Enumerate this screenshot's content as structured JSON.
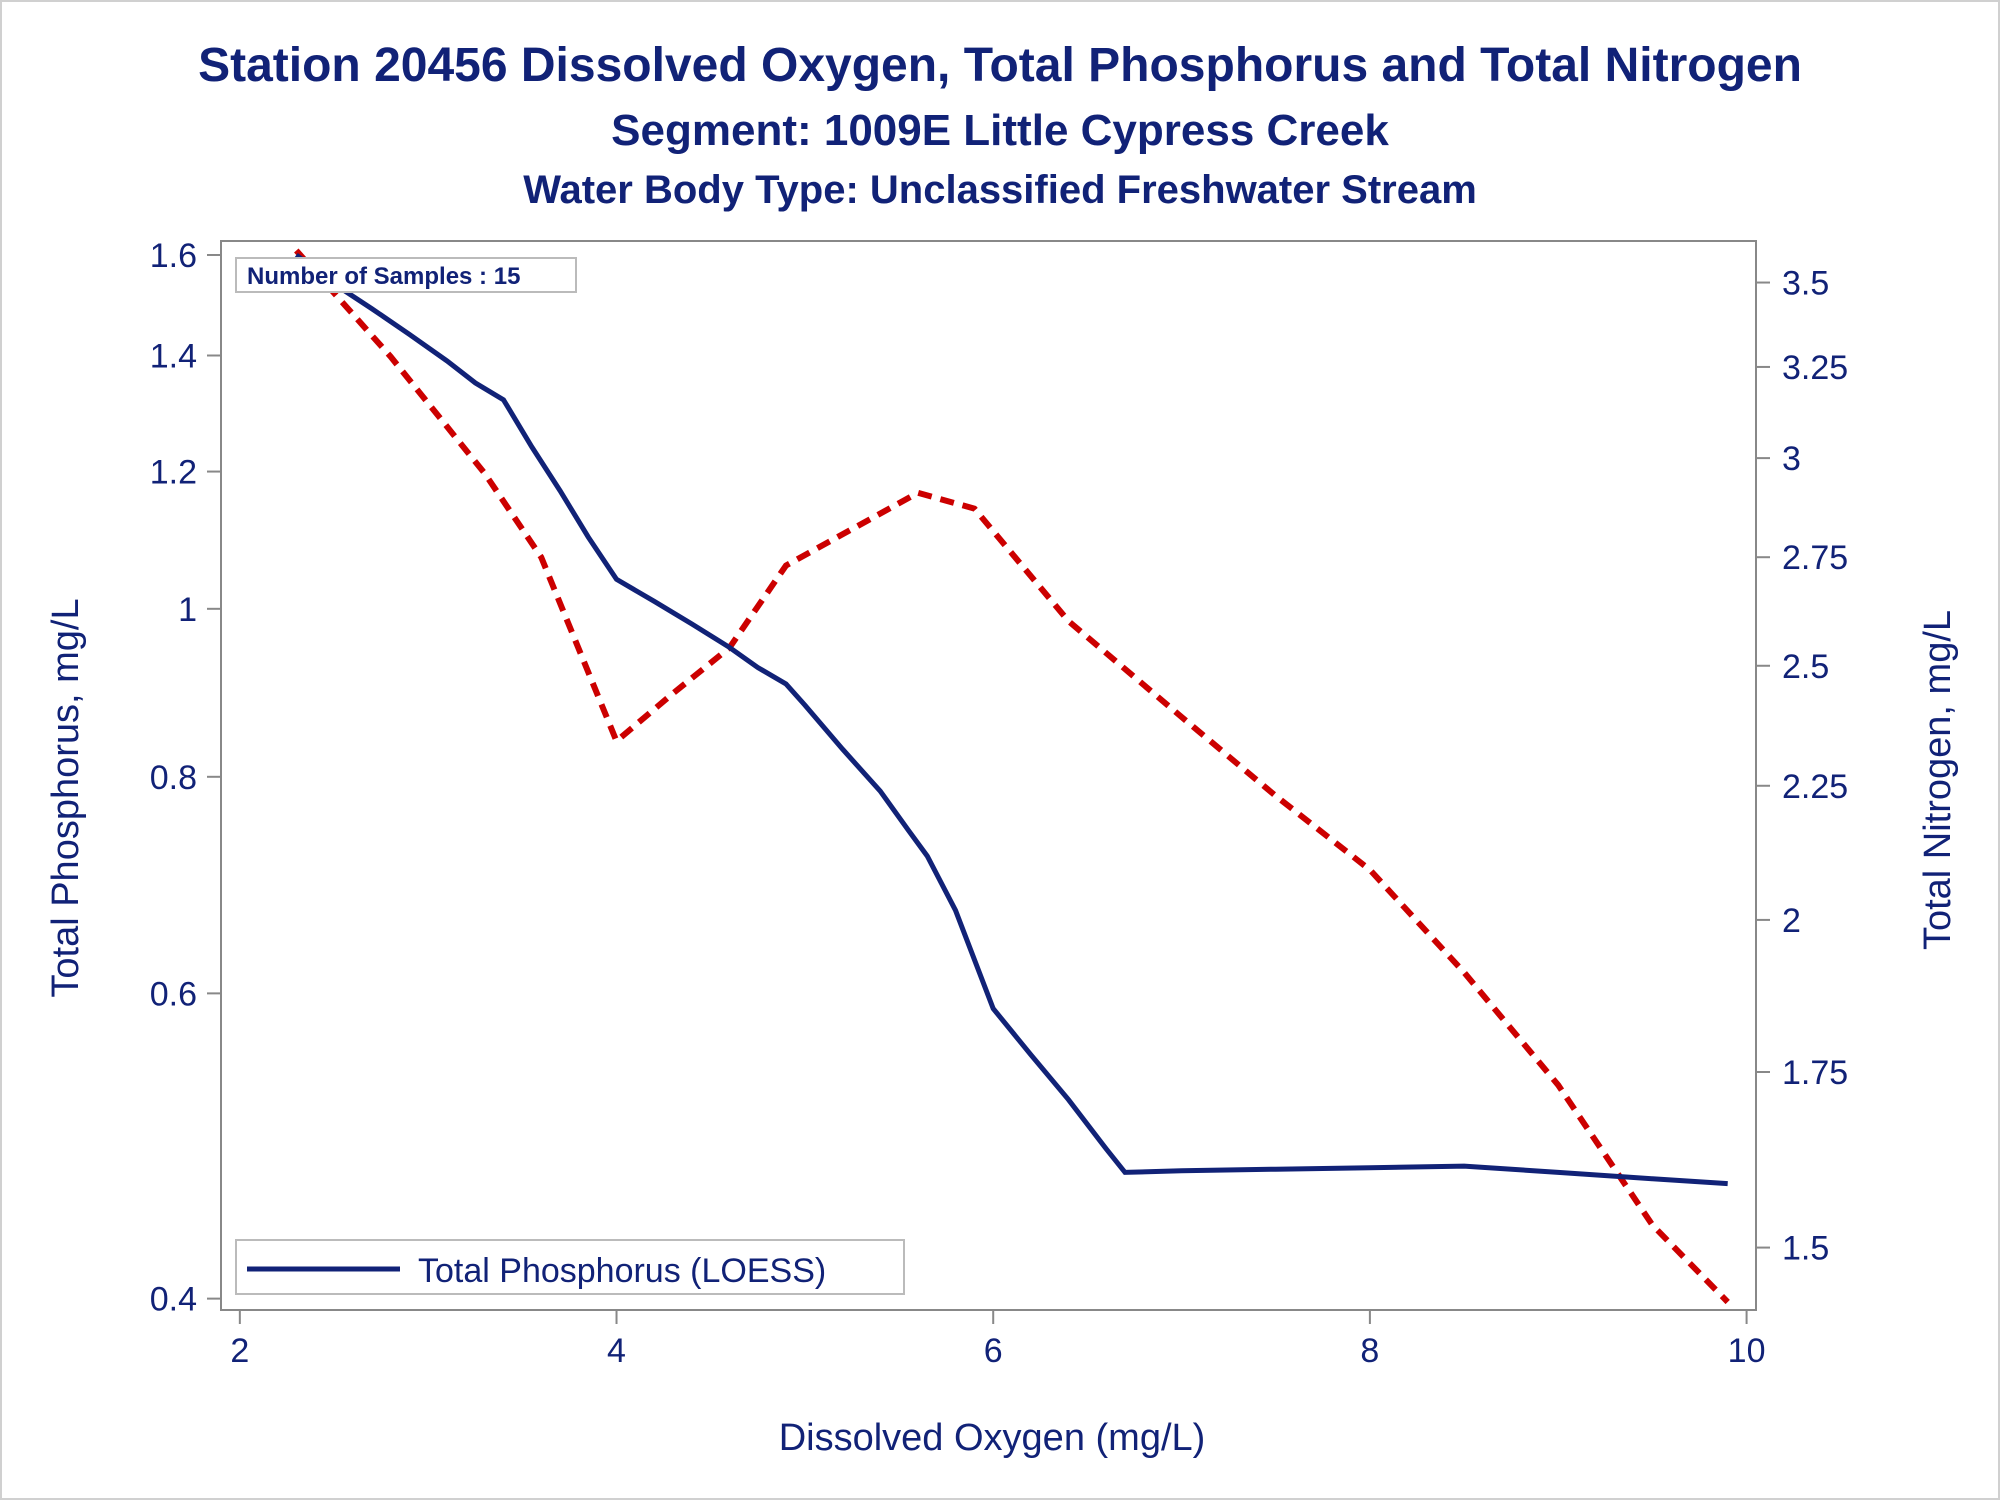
{
  "titles": {
    "line1": "Station 20456  Dissolved Oxygen, Total Phosphorus and Total Nitrogen",
    "line2": "Segment: 1009E  Little Cypress Creek",
    "line3": "Water Body Type: Unclassified Freshwater Stream"
  },
  "chart_data": {
    "type": "line",
    "xlabel": "Dissolved Oxygen (mg/L)",
    "ylabel": "Total Phosphorus, mg/L",
    "y2label": "Total Nitrogen, mg/L",
    "xlim": [
      1.9,
      10.05
    ],
    "ylim": [
      0.394,
      1.63
    ],
    "y_scale": "log",
    "y2lim": [
      1.42,
      3.63
    ],
    "y2_scale": "log",
    "xticks": [
      "2",
      "4",
      "6",
      "8",
      "10"
    ],
    "yticks": [
      "0.4",
      "0.6",
      "0.8",
      "1",
      "1.2",
      "1.4",
      "1.6"
    ],
    "y2ticks": [
      "1.5",
      "1.75",
      "2",
      "2.25",
      "2.5",
      "2.75",
      "3",
      "3.25",
      "3.5"
    ],
    "inset_label": "Number of Samples : 15",
    "legend": {
      "position": "bottom-left",
      "label": "Total Phosphorus (LOESS)"
    },
    "colors": {
      "phosphorus": "#112277",
      "nitrogen": "#cc0000",
      "axis": "#888888",
      "text": "#112277"
    },
    "series": [
      {
        "axis": "left",
        "style": "solid",
        "x": [
          2.3,
          2.5,
          2.7,
          2.9,
          3.1,
          3.25,
          3.4,
          3.55,
          3.7,
          3.85,
          4.0,
          4.2,
          4.4,
          4.6,
          4.75,
          4.9,
          5.0,
          5.2,
          5.4,
          5.55,
          5.65,
          5.8,
          6.0,
          6.2,
          6.4,
          6.6,
          6.7,
          7.0,
          7.5,
          8.0,
          8.5,
          9.0,
          9.5,
          9.9
        ],
        "values": [
          1.6,
          1.54,
          1.49,
          1.44,
          1.39,
          1.35,
          1.32,
          1.24,
          1.17,
          1.1,
          1.04,
          1.01,
          0.98,
          0.95,
          0.925,
          0.905,
          0.88,
          0.83,
          0.785,
          0.745,
          0.72,
          0.67,
          0.588,
          0.553,
          0.521,
          0.488,
          0.473,
          0.474,
          0.475,
          0.476,
          0.477,
          0.473,
          0.469,
          0.466
        ]
      },
      {
        "axis": "right",
        "style": "dashed",
        "x": [
          2.3,
          2.8,
          3.3,
          3.6,
          4.0,
          4.3,
          4.6,
          4.9,
          5.6,
          5.9,
          6.4,
          7.0,
          7.5,
          8.0,
          8.5,
          9.0,
          9.5,
          9.9
        ],
        "values": [
          3.6,
          3.28,
          2.96,
          2.75,
          2.34,
          2.44,
          2.54,
          2.73,
          2.91,
          2.87,
          2.6,
          2.39,
          2.23,
          2.09,
          1.91,
          1.73,
          1.53,
          1.43
        ]
      }
    ]
  }
}
